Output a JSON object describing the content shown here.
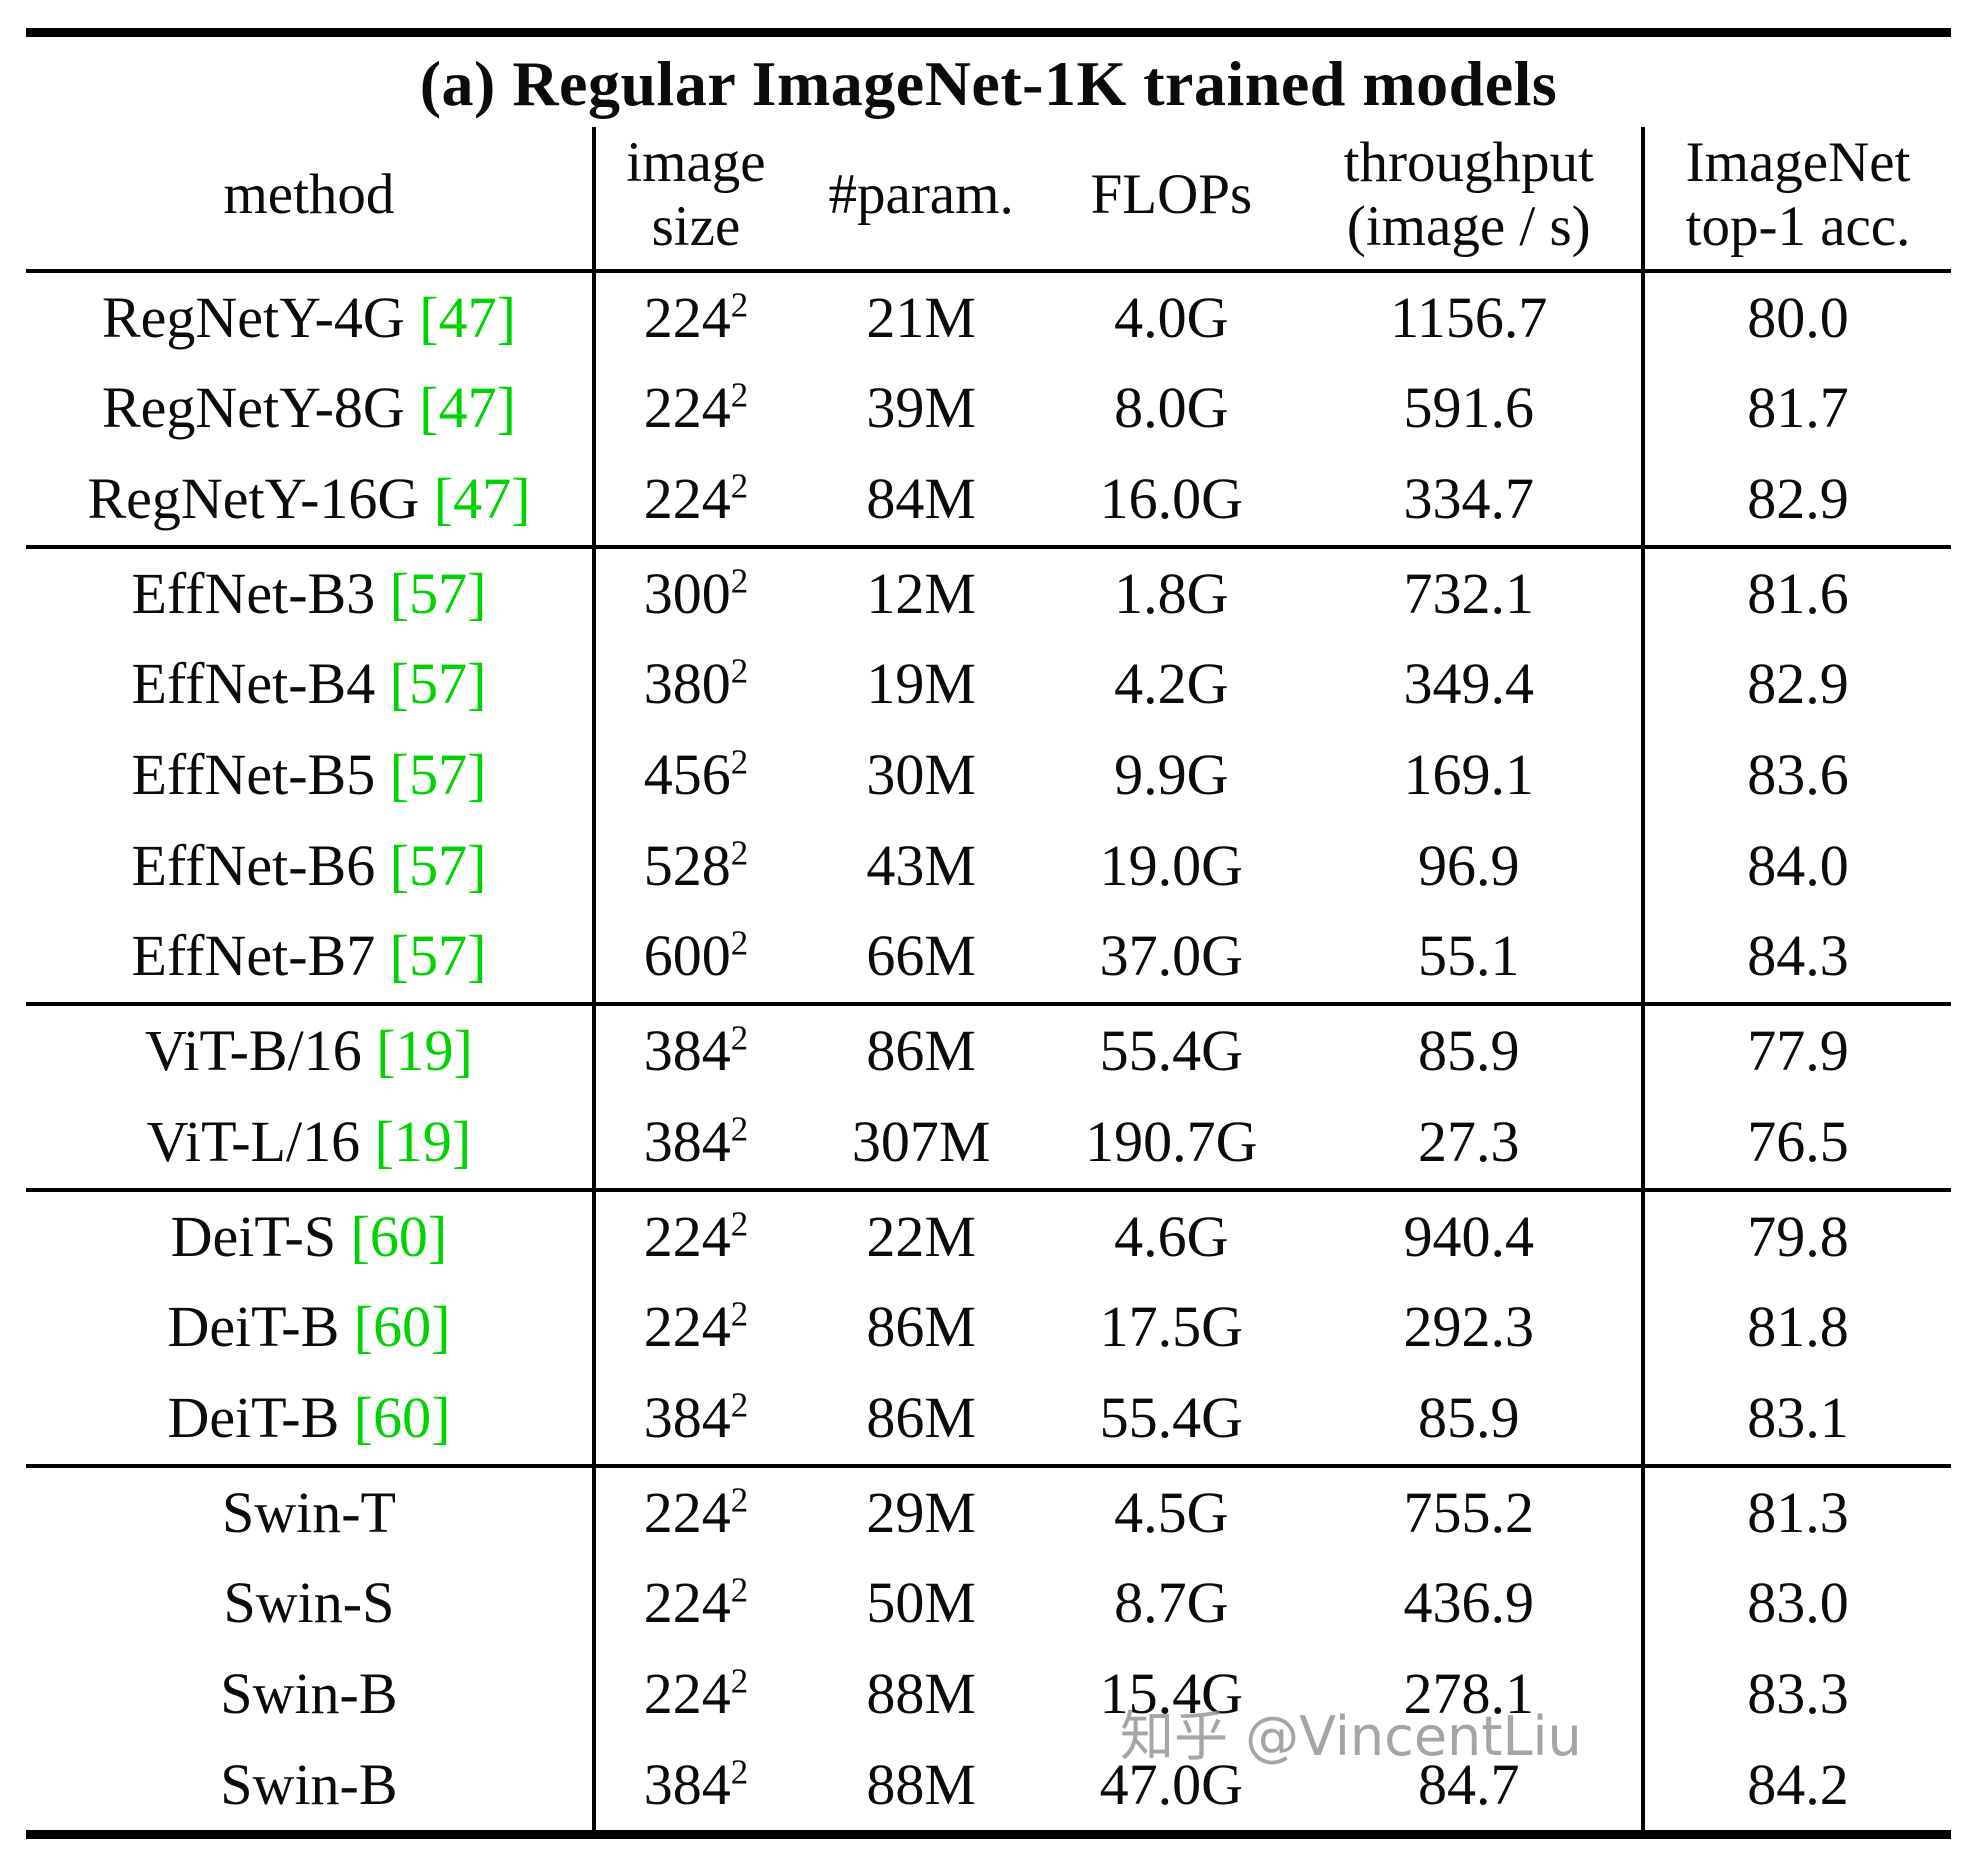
{
  "title": "(a) Regular ImageNet-1K trained models",
  "columns": {
    "method": "method",
    "size": "image\nsize",
    "params": "#param.",
    "flops": "FLOPs",
    "throughput": "throughput\n(image / s)",
    "acc": "ImageNet\ntop-1 acc."
  },
  "colors": {
    "citation": "#00d400",
    "watermark": "#8f8f8f"
  },
  "watermark": "知乎 @VincentLiu",
  "rows": [
    {
      "group_start": false,
      "method": "RegNetY-4G",
      "cite": "[47]",
      "size": "224",
      "size_exp": "2",
      "params": "21M",
      "flops": "4.0G",
      "throughput": "1156.7",
      "acc": "80.0"
    },
    {
      "group_start": false,
      "method": "RegNetY-8G",
      "cite": "[47]",
      "size": "224",
      "size_exp": "2",
      "params": "39M",
      "flops": "8.0G",
      "throughput": "591.6",
      "acc": "81.7"
    },
    {
      "group_start": false,
      "method": "RegNetY-16G",
      "cite": "[47]",
      "size": "224",
      "size_exp": "2",
      "params": "84M",
      "flops": "16.0G",
      "throughput": "334.7",
      "acc": "82.9"
    },
    {
      "group_start": true,
      "method": "EffNet-B3",
      "cite": "[57]",
      "size": "300",
      "size_exp": "2",
      "params": "12M",
      "flops": "1.8G",
      "throughput": "732.1",
      "acc": "81.6"
    },
    {
      "group_start": false,
      "method": "EffNet-B4",
      "cite": "[57]",
      "size": "380",
      "size_exp": "2",
      "params": "19M",
      "flops": "4.2G",
      "throughput": "349.4",
      "acc": "82.9"
    },
    {
      "group_start": false,
      "method": "EffNet-B5",
      "cite": "[57]",
      "size": "456",
      "size_exp": "2",
      "params": "30M",
      "flops": "9.9G",
      "throughput": "169.1",
      "acc": "83.6"
    },
    {
      "group_start": false,
      "method": "EffNet-B6",
      "cite": "[57]",
      "size": "528",
      "size_exp": "2",
      "params": "43M",
      "flops": "19.0G",
      "throughput": "96.9",
      "acc": "84.0"
    },
    {
      "group_start": false,
      "method": "EffNet-B7",
      "cite": "[57]",
      "size": "600",
      "size_exp": "2",
      "params": "66M",
      "flops": "37.0G",
      "throughput": "55.1",
      "acc": "84.3"
    },
    {
      "group_start": true,
      "method": "ViT-B/16",
      "cite": "[19]",
      "size": "384",
      "size_exp": "2",
      "params": "86M",
      "flops": "55.4G",
      "throughput": "85.9",
      "acc": "77.9"
    },
    {
      "group_start": false,
      "method": "ViT-L/16",
      "cite": "[19]",
      "size": "384",
      "size_exp": "2",
      "params": "307M",
      "flops": "190.7G",
      "throughput": "27.3",
      "acc": "76.5"
    },
    {
      "group_start": true,
      "method": "DeiT-S",
      "cite": "[60]",
      "size": "224",
      "size_exp": "2",
      "params": "22M",
      "flops": "4.6G",
      "throughput": "940.4",
      "acc": "79.8"
    },
    {
      "group_start": false,
      "method": "DeiT-B",
      "cite": "[60]",
      "size": "224",
      "size_exp": "2",
      "params": "86M",
      "flops": "17.5G",
      "throughput": "292.3",
      "acc": "81.8"
    },
    {
      "group_start": false,
      "method": "DeiT-B",
      "cite": "[60]",
      "size": "384",
      "size_exp": "2",
      "params": "86M",
      "flops": "55.4G",
      "throughput": "85.9",
      "acc": "83.1"
    },
    {
      "group_start": true,
      "method": "Swin-T",
      "cite": "",
      "size": "224",
      "size_exp": "2",
      "params": "29M",
      "flops": "4.5G",
      "throughput": "755.2",
      "acc": "81.3"
    },
    {
      "group_start": false,
      "method": "Swin-S",
      "cite": "",
      "size": "224",
      "size_exp": "2",
      "params": "50M",
      "flops": "8.7G",
      "throughput": "436.9",
      "acc": "83.0"
    },
    {
      "group_start": false,
      "method": "Swin-B",
      "cite": "",
      "size": "224",
      "size_exp": "2",
      "params": "88M",
      "flops": "15.4G",
      "throughput": "278.1",
      "acc": "83.3"
    },
    {
      "group_start": false,
      "method": "Swin-B",
      "cite": "",
      "size": "384",
      "size_exp": "2",
      "params": "88M",
      "flops": "47.0G",
      "throughput": "84.7",
      "acc": "84.2"
    }
  ]
}
